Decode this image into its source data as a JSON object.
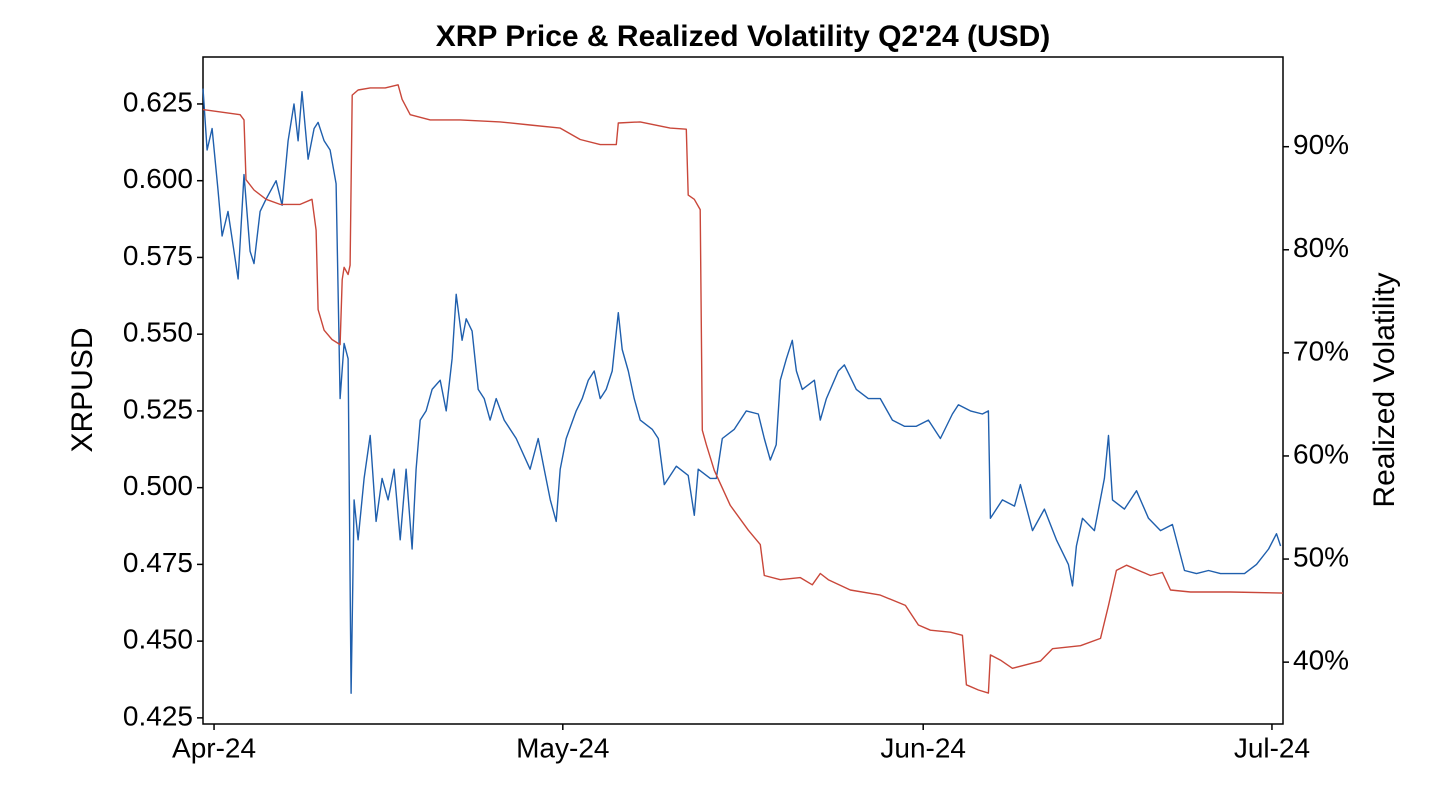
{
  "chart_data": {
    "type": "line",
    "title": "XRP Price & Realized Volatility Q2'24 (USD)",
    "y_label": "XRPUSD",
    "y2_label": "Realized Volatility",
    "xlim": [
      -0.95,
      91.95
    ],
    "xticks": [
      {
        "value": 0,
        "label": "Apr-24"
      },
      {
        "value": 30,
        "label": "May-24"
      },
      {
        "value": 61,
        "label": "Jun-24"
      },
      {
        "value": 91,
        "label": "Jul-24"
      }
    ],
    "ylim": [
      0.423,
      0.6403
    ],
    "yticks": [
      {
        "value": 0.425,
        "label": "0.425"
      },
      {
        "value": 0.45,
        "label": "0.450"
      },
      {
        "value": 0.475,
        "label": "0.475"
      },
      {
        "value": 0.5,
        "label": "0.500"
      },
      {
        "value": 0.525,
        "label": "0.525"
      },
      {
        "value": 0.55,
        "label": "0.550"
      },
      {
        "value": 0.575,
        "label": "0.575"
      },
      {
        "value": 0.6,
        "label": "0.600"
      },
      {
        "value": 0.625,
        "label": "0.625"
      }
    ],
    "y2lim": [
      34.0,
      98.7
    ],
    "y2ticks": [
      {
        "value": 40,
        "label": "40%"
      },
      {
        "value": 50,
        "label": "50%"
      },
      {
        "value": 60,
        "label": "60%"
      },
      {
        "value": 70,
        "label": "70%"
      },
      {
        "value": 80,
        "label": "80%"
      },
      {
        "value": 90,
        "label": "90%"
      }
    ],
    "series": [
      {
        "color": "#1f5fad",
        "axis": "y",
        "x": [
          -0.95,
          -0.6,
          -0.17,
          0.34,
          0.69,
          1.2,
          1.72,
          2.07,
          2.58,
          3.1,
          3.44,
          3.96,
          4.48,
          5.34,
          5.85,
          6.37,
          6.88,
          7.23,
          7.57,
          8.09,
          8.61,
          8.95,
          9.47,
          9.98,
          10.5,
          10.84,
          11.19,
          11.53,
          11.79,
          12.05,
          12.39,
          12.91,
          13.43,
          13.94,
          14.46,
          14.97,
          15.49,
          16.01,
          16.52,
          17.04,
          17.38,
          17.73,
          18.24,
          18.76,
          19.45,
          19.97,
          20.48,
          20.83,
          21.34,
          21.69,
          22.2,
          22.72,
          23.24,
          23.75,
          24.27,
          24.96,
          25.99,
          27.19,
          27.88,
          28.4,
          28.92,
          29.43,
          29.78,
          30.29,
          31.15,
          31.67,
          32.19,
          32.7,
          33.22,
          33.73,
          34.25,
          34.77,
          35.11,
          35.63,
          36.14,
          36.66,
          37.69,
          38.21,
          38.73,
          39.76,
          40.79,
          41.31,
          41.65,
          42.69,
          43.2,
          43.72,
          44.75,
          45.78,
          46.82,
          47.33,
          47.85,
          48.36,
          48.71,
          49.23,
          49.74,
          50.09,
          50.6,
          51.64,
          52.15,
          52.67,
          53.7,
          54.22,
          55.25,
          56.28,
          57.31,
          58.35,
          59.38,
          60.41,
          61.45,
          62.48,
          63.51,
          64.03,
          65.06,
          66.09,
          66.61,
          66.78,
          67.81,
          68.85,
          69.36,
          70.4,
          71.43,
          72.46,
          73.49,
          73.84,
          74.18,
          74.7,
          75.73,
          76.59,
          76.94,
          77.28,
          78.31,
          79.35,
          80.38,
          81.41,
          82.44,
          83.48,
          84.51,
          85.54,
          86.57,
          87.61,
          88.64,
          89.67,
          90.71,
          91.39,
          91.74
        ],
        "values": [
          0.63,
          0.61,
          0.617,
          0.597,
          0.582,
          0.59,
          0.577,
          0.568,
          0.602,
          0.577,
          0.573,
          0.59,
          0.594,
          0.6,
          0.592,
          0.613,
          0.625,
          0.613,
          0.629,
          0.607,
          0.617,
          0.619,
          0.613,
          0.61,
          0.599,
          0.529,
          0.547,
          0.542,
          0.433,
          0.496,
          0.483,
          0.503,
          0.517,
          0.489,
          0.503,
          0.496,
          0.506,
          0.483,
          0.506,
          0.48,
          0.506,
          0.522,
          0.525,
          0.532,
          0.535,
          0.525,
          0.542,
          0.563,
          0.548,
          0.555,
          0.551,
          0.532,
          0.529,
          0.522,
          0.529,
          0.522,
          0.516,
          0.506,
          0.516,
          0.506,
          0.496,
          0.489,
          0.506,
          0.516,
          0.525,
          0.529,
          0.535,
          0.538,
          0.529,
          0.532,
          0.538,
          0.557,
          0.545,
          0.538,
          0.529,
          0.522,
          0.519,
          0.516,
          0.501,
          0.507,
          0.504,
          0.491,
          0.506,
          0.503,
          0.503,
          0.516,
          0.519,
          0.525,
          0.524,
          0.516,
          0.509,
          0.514,
          0.535,
          0.542,
          0.548,
          0.538,
          0.532,
          0.535,
          0.522,
          0.529,
          0.538,
          0.54,
          0.532,
          0.529,
          0.529,
          0.522,
          0.52,
          0.52,
          0.522,
          0.516,
          0.524,
          0.527,
          0.525,
          0.524,
          0.525,
          0.49,
          0.496,
          0.494,
          0.501,
          0.486,
          0.493,
          0.483,
          0.475,
          0.468,
          0.481,
          0.49,
          0.486,
          0.503,
          0.517,
          0.496,
          0.493,
          0.499,
          0.49,
          0.486,
          0.488,
          0.473,
          0.472,
          0.473,
          0.472,
          0.472,
          0.472,
          0.475,
          0.48,
          0.485,
          0.481
        ]
      },
      {
        "color": "#c9473a",
        "axis": "y2",
        "x": [
          -0.95,
          2.24,
          2.58,
          2.75,
          3.44,
          4.48,
          5.68,
          7.4,
          8.43,
          8.78,
          8.95,
          9.47,
          10.15,
          10.84,
          11.02,
          11.19,
          11.53,
          11.7,
          11.88,
          12.39,
          13.43,
          14.72,
          15.83,
          16.18,
          16.87,
          18.59,
          21.17,
          24.61,
          27.19,
          29.78,
          31.5,
          33.22,
          34.6,
          34.77,
          36.66,
          39.24,
          40.62,
          40.79,
          41.31,
          41.82,
          42.0,
          42.34,
          43.03,
          44.41,
          45.96,
          46.99,
          47.33,
          48.71,
          50.43,
          51.46,
          52.15,
          52.84,
          54.73,
          57.31,
          59.47,
          60.59,
          61.62,
          63.34,
          64.37,
          64.72,
          65.75,
          66.61,
          66.78,
          67.64,
          68.67,
          71.08,
          72.12,
          74.53,
          76.25,
          76.94,
          77.62,
          78.49,
          80.55,
          81.58,
          82.27,
          83.99,
          87.43,
          91.95
        ],
        "values": [
          93.6,
          93.1,
          92.6,
          86.8,
          85.8,
          84.9,
          84.4,
          84.4,
          84.9,
          81.9,
          74.2,
          72.2,
          71.3,
          70.8,
          77.1,
          78.3,
          77.6,
          78.5,
          95.0,
          95.5,
          95.7,
          95.7,
          96.0,
          94.6,
          93.1,
          92.6,
          92.6,
          92.4,
          92.1,
          91.8,
          90.7,
          90.2,
          90.2,
          92.3,
          92.4,
          91.8,
          91.7,
          85.3,
          84.9,
          83.9,
          62.5,
          61.1,
          58.6,
          55.2,
          52.8,
          51.4,
          48.4,
          48.0,
          48.2,
          47.5,
          48.6,
          48.0,
          47.0,
          46.5,
          45.5,
          43.6,
          43.1,
          42.9,
          42.6,
          37.8,
          37.3,
          37.0,
          40.7,
          40.2,
          39.4,
          40.1,
          41.3,
          41.6,
          42.3,
          45.5,
          48.9,
          49.4,
          48.4,
          48.7,
          47.0,
          46.8,
          46.8,
          46.7
        ]
      }
    ]
  }
}
